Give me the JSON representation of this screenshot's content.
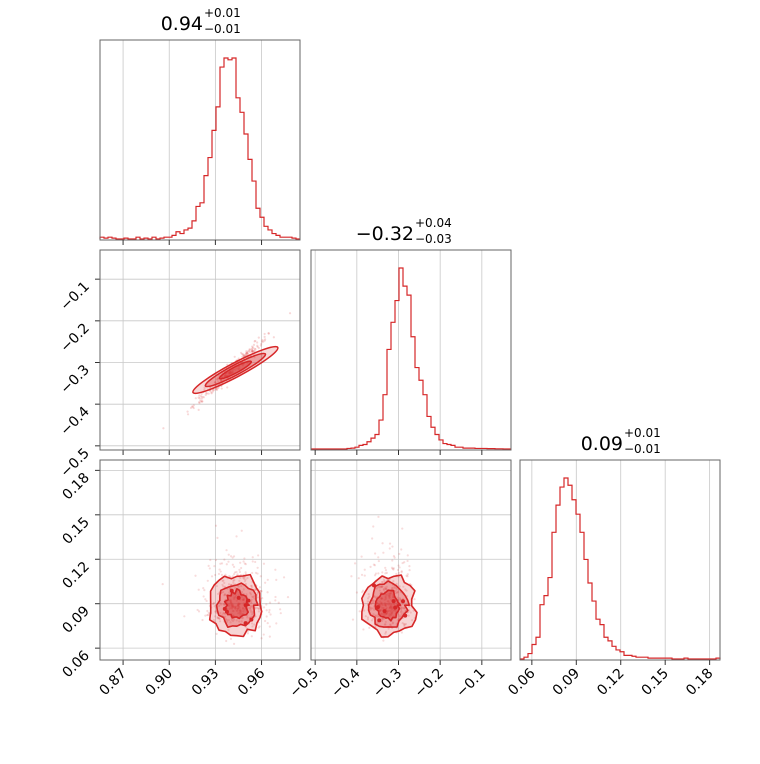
{
  "colors": {
    "accent": "#d62728",
    "grid": "#c8c8c8",
    "frame": "#666666"
  },
  "chart_data": {
    "type": "corner",
    "parameters": [
      {
        "index": 0,
        "title_median": "0.94",
        "title_plus": "+0.01",
        "title_minus": "−0.01",
        "range": [
          0.855,
          0.985
        ],
        "ticks": [
          "0.87",
          "0.90",
          "0.93",
          "0.96"
        ],
        "tick_values": [
          0.87,
          0.9,
          0.93,
          0.96
        ]
      },
      {
        "index": 1,
        "title_median": "−0.32",
        "title_plus": "+0.04",
        "title_minus": "−0.03",
        "range": [
          -0.51,
          -0.03
        ],
        "ticks": [
          "−0.5",
          "−0.4",
          "−0.3",
          "−0.2",
          "−0.1"
        ],
        "tick_values": [
          -0.5,
          -0.4,
          -0.3,
          -0.2,
          -0.1
        ]
      },
      {
        "index": 2,
        "title_median": "0.09",
        "title_plus": "+0.01",
        "title_minus": "−0.01",
        "range": [
          0.052,
          0.187
        ],
        "ticks": [
          "0.06",
          "0.09",
          "0.12",
          "0.15",
          "0.18"
        ],
        "tick_values": [
          0.06,
          0.09,
          0.12,
          0.15,
          0.18
        ]
      }
    ],
    "histograms": {
      "p0": [
        0.01,
        0.005,
        0.01,
        0.005,
        0,
        0,
        0.005,
        0,
        0,
        0.01,
        0,
        0.005,
        0,
        0.01,
        0,
        0.005,
        0.01,
        0.01,
        0.02,
        0.04,
        0.03,
        0.05,
        0.06,
        0.1,
        0.18,
        0.2,
        0.35,
        0.45,
        0.6,
        0.73,
        0.95,
        1.0,
        0.99,
        1.0,
        0.78,
        0.7,
        0.58,
        0.44,
        0.32,
        0.17,
        0.12,
        0.07,
        0.05,
        0.03,
        0.02,
        0.01,
        0.01,
        0.01,
        0.005,
        0.0
      ],
      "p1": [
        0,
        0,
        0,
        0,
        0,
        0,
        0,
        0,
        0,
        0.003,
        0.005,
        0.01,
        0.02,
        0.025,
        0.04,
        0.06,
        0.08,
        0.16,
        0.3,
        0.55,
        0.7,
        0.82,
        1.0,
        0.9,
        0.85,
        0.62,
        0.45,
        0.38,
        0.3,
        0.18,
        0.12,
        0.08,
        0.05,
        0.03,
        0.025,
        0.02,
        0.01,
        0.01,
        0.005,
        0.005,
        0.005,
        0.003,
        0.003,
        0.003,
        0.002,
        0.002,
        0.001,
        0.001,
        0,
        0
      ],
      "p2": [
        0,
        0.01,
        0.03,
        0.08,
        0.12,
        0.3,
        0.35,
        0.45,
        0.7,
        0.85,
        0.95,
        1.0,
        0.96,
        0.88,
        0.8,
        0.7,
        0.55,
        0.42,
        0.32,
        0.22,
        0.19,
        0.12,
        0.1,
        0.07,
        0.05,
        0.04,
        0.02,
        0.02,
        0.015,
        0.01,
        0.01,
        0.01,
        0.005,
        0.005,
        0.005,
        0.005,
        0.005,
        0.005,
        0,
        0,
        0,
        0.005,
        0,
        0,
        0,
        0,
        0,
        0,
        0,
        0.005
      ]
    },
    "contours_10": [
      {
        "rx": 0.021,
        "ry": 0.009,
        "level": "outer"
      },
      {
        "rx": 0.015,
        "ry": 0.007,
        "level": "middle"
      },
      {
        "rx": 0.008,
        "ry": 0.004,
        "level": "inner"
      }
    ],
    "grid": true
  }
}
